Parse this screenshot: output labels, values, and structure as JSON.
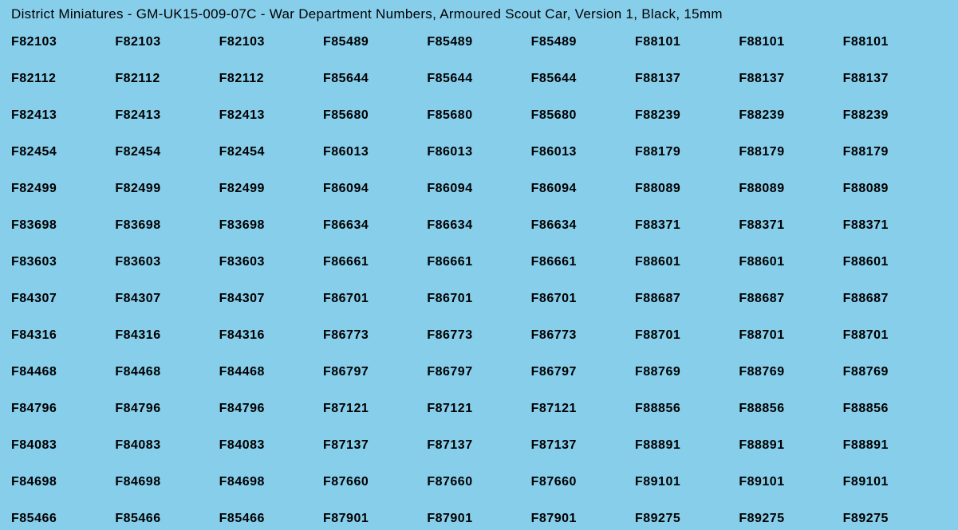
{
  "title": "District Miniatures - GM-UK15-009-07C - War Department Numbers, Armoured Scout Car, Version 1, Black, 15mm",
  "background_color": "#87ceeb",
  "text_color": "#000000",
  "title_fontsize": 17,
  "cell_fontsize": 16,
  "cell_fontweight": "bold",
  "columns": 9,
  "rows": 14,
  "values": [
    [
      "F82103",
      "F82103",
      "F82103",
      "F85489",
      "F85489",
      "F85489",
      "F88101",
      "F88101",
      "F88101"
    ],
    [
      "F82112",
      "F82112",
      "F82112",
      "F85644",
      "F85644",
      "F85644",
      "F88137",
      "F88137",
      "F88137"
    ],
    [
      "F82413",
      "F82413",
      "F82413",
      "F85680",
      "F85680",
      "F85680",
      "F88239",
      "F88239",
      "F88239"
    ],
    [
      "F82454",
      "F82454",
      "F82454",
      "F86013",
      "F86013",
      "F86013",
      "F88179",
      "F88179",
      "F88179"
    ],
    [
      "F82499",
      "F82499",
      "F82499",
      "F86094",
      "F86094",
      "F86094",
      "F88089",
      "F88089",
      "F88089"
    ],
    [
      "F83698",
      "F83698",
      "F83698",
      "F86634",
      "F86634",
      "F86634",
      "F88371",
      "F88371",
      "F88371"
    ],
    [
      "F83603",
      "F83603",
      "F83603",
      "F86661",
      "F86661",
      "F86661",
      "F88601",
      "F88601",
      "F88601"
    ],
    [
      "F84307",
      "F84307",
      "F84307",
      "F86701",
      "F86701",
      "F86701",
      "F88687",
      "F88687",
      "F88687"
    ],
    [
      "F84316",
      "F84316",
      "F84316",
      "F86773",
      "F86773",
      "F86773",
      "F88701",
      "F88701",
      "F88701"
    ],
    [
      "F84468",
      "F84468",
      "F84468",
      "F86797",
      "F86797",
      "F86797",
      "F88769",
      "F88769",
      "F88769"
    ],
    [
      "F84796",
      "F84796",
      "F84796",
      "F87121",
      "F87121",
      "F87121",
      "F88856",
      "F88856",
      "F88856"
    ],
    [
      "F84083",
      "F84083",
      "F84083",
      "F87137",
      "F87137",
      "F87137",
      "F88891",
      "F88891",
      "F88891"
    ],
    [
      "F84698",
      "F84698",
      "F84698",
      "F87660",
      "F87660",
      "F87660",
      "F89101",
      "F89101",
      "F89101"
    ],
    [
      "F85466",
      "F85466",
      "F85466",
      "F87901",
      "F87901",
      "F87901",
      "F89275",
      "F89275",
      "F89275"
    ]
  ]
}
